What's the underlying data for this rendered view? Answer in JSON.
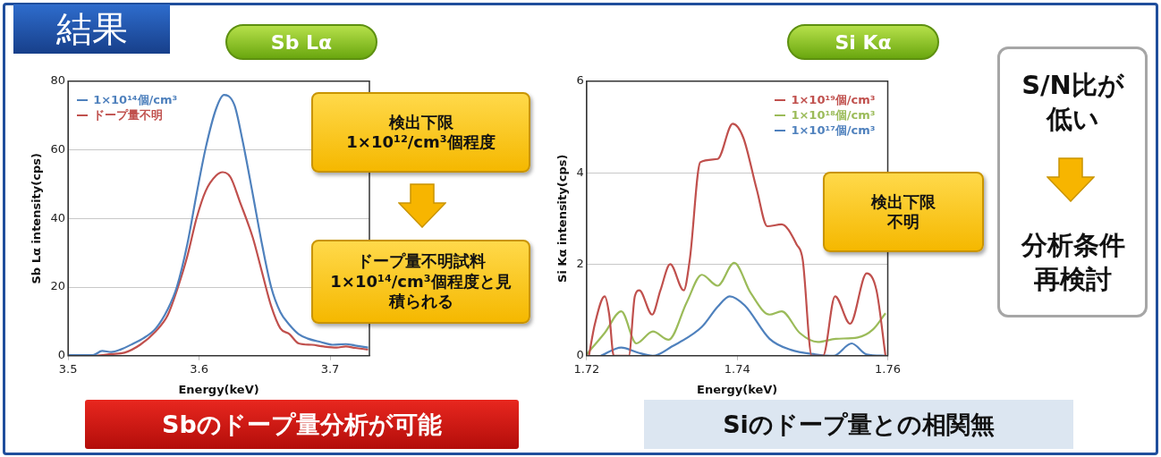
{
  "chart_data": [
    {
      "type": "line",
      "title": "Sb Lα",
      "xlabel": "Energy(keV)",
      "ylabel": "Sb Lα intensity(cps)",
      "xlim": [
        3.5,
        3.73
      ],
      "xticks": [
        3.5,
        3.6,
        3.7
      ],
      "ylim": [
        0,
        80
      ],
      "yticks": [
        0,
        20,
        40,
        60,
        80
      ],
      "grid": "y",
      "legend": "top left",
      "marker": "none",
      "line_style": "solid",
      "annotations": [
        "検出下限\n1×10¹²/cm³個程度",
        "ドープ量不明試料\n1×10¹⁴/cm³個程度と見積られる",
        "Sbのドープ量分析が可能"
      ],
      "series": [
        {
          "name": "1×10¹⁴個/cm³",
          "color": "#4f81bd",
          "x": [
            3.5,
            3.519,
            3.526,
            3.533,
            3.54,
            3.55,
            3.557,
            3.567,
            3.576,
            3.583,
            3.591,
            3.598,
            3.605,
            3.613,
            3.619,
            3.627,
            3.633,
            3.641,
            3.648,
            3.655,
            3.662,
            3.669,
            3.676,
            3.683,
            3.693,
            3.702,
            3.712,
            3.719,
            3.729
          ],
          "values": [
            0.2,
            0.2,
            1.4,
            1.1,
            1.8,
            3.6,
            5,
            8,
            13.5,
            20,
            32.5,
            47,
            60.5,
            72,
            76,
            73,
            63,
            47,
            32.5,
            20,
            12.7,
            9,
            6.3,
            5,
            4,
            3.2,
            3.4,
            3,
            2.4
          ]
        },
        {
          "name": "ドープ量不明",
          "color": "#c0504d",
          "x": [
            3.5,
            3.521,
            3.533,
            3.543,
            3.555,
            3.567,
            3.576,
            3.583,
            3.591,
            3.598,
            3.605,
            3.613,
            3.618,
            3.624,
            3.631,
            3.641,
            3.648,
            3.655,
            3.662,
            3.669,
            3.676,
            3.686,
            3.695,
            3.705,
            3.712,
            3.719,
            3.729
          ],
          "values": [
            0.2,
            0,
            0.5,
            0.9,
            3.2,
            7.2,
            11.8,
            19,
            29,
            40,
            48,
            52.5,
            53.5,
            52,
            45,
            34.4,
            24.4,
            14.5,
            8,
            6.3,
            3.6,
            3.2,
            2.7,
            2.4,
            2.7,
            2.3,
            1.8
          ]
        }
      ]
    },
    {
      "type": "line",
      "title": "Si Kα",
      "xlabel": "Energy(keV)",
      "ylabel": "Si Kα intensity(cps)",
      "xlim": [
        1.72,
        1.76
      ],
      "xticks": [
        1.72,
        1.74,
        1.76
      ],
      "ylim": [
        0,
        6
      ],
      "yticks": [
        0,
        2,
        4,
        6
      ],
      "grid": "y",
      "legend": "top right",
      "marker": "none",
      "line_style": "solid",
      "annotations": [
        "検出下限不明",
        "Siのドープ量との相関無"
      ],
      "series": [
        {
          "name": "1×10¹⁹個/cm³",
          "color": "#c0504d",
          "x": [
            1.7203,
            1.7211,
            1.7224,
            1.723,
            1.7236,
            1.7256,
            1.7264,
            1.727,
            1.7287,
            1.7298,
            1.7311,
            1.7329,
            1.7337,
            1.7351,
            1.7374,
            1.7394,
            1.7408,
            1.7426,
            1.744,
            1.7459,
            1.7479,
            1.7487,
            1.7499,
            1.7514,
            1.753,
            1.755,
            1.7572,
            1.7585,
            1.7597
          ],
          "values": [
            0,
            0.7,
            1.3,
            0.9,
            0,
            0,
            1.3,
            1.43,
            0.9,
            1.43,
            2,
            1.43,
            2.1,
            4.23,
            4.3,
            5.07,
            4.77,
            3.63,
            2.83,
            2.87,
            2.43,
            2.1,
            0,
            0,
            1.3,
            0.7,
            1.8,
            1.43,
            0
          ]
        },
        {
          "name": "1×10¹⁸個/cm³",
          "color": "#9bbb59",
          "x": [
            1.72,
            1.7224,
            1.7246,
            1.7266,
            1.7288,
            1.7309,
            1.7333,
            1.7353,
            1.7374,
            1.7396,
            1.7418,
            1.7443,
            1.7459,
            1.7483,
            1.7507,
            1.7531,
            1.756,
            1.758,
            1.7597
          ],
          "values": [
            0.03,
            0.5,
            0.97,
            0.27,
            0.53,
            0.35,
            1.17,
            1.77,
            1.53,
            2.03,
            1.37,
            0.9,
            0.97,
            0.5,
            0.3,
            0.37,
            0.4,
            0.57,
            0.93
          ]
        },
        {
          "name": "1×10¹⁷個/cm³",
          "color": "#4f81bd",
          "x": [
            1.7219,
            1.7246,
            1.7268,
            1.7288,
            1.7313,
            1.7353,
            1.7374,
            1.739,
            1.741,
            1.7443,
            1.7471,
            1.7504,
            1.7528,
            1.7552,
            1.7572,
            1.7597
          ],
          "values": [
            0,
            0.18,
            0.07,
            0,
            0.2,
            0.63,
            1.07,
            1.3,
            1.1,
            0.37,
            0.13,
            0.03,
            0,
            0.27,
            0.03,
            0
          ]
        }
      ]
    },
    {
      "type": "other",
      "annotations": [
        "結果",
        "S/N比が低い",
        "分析条件再検討"
      ]
    }
  ]
}
